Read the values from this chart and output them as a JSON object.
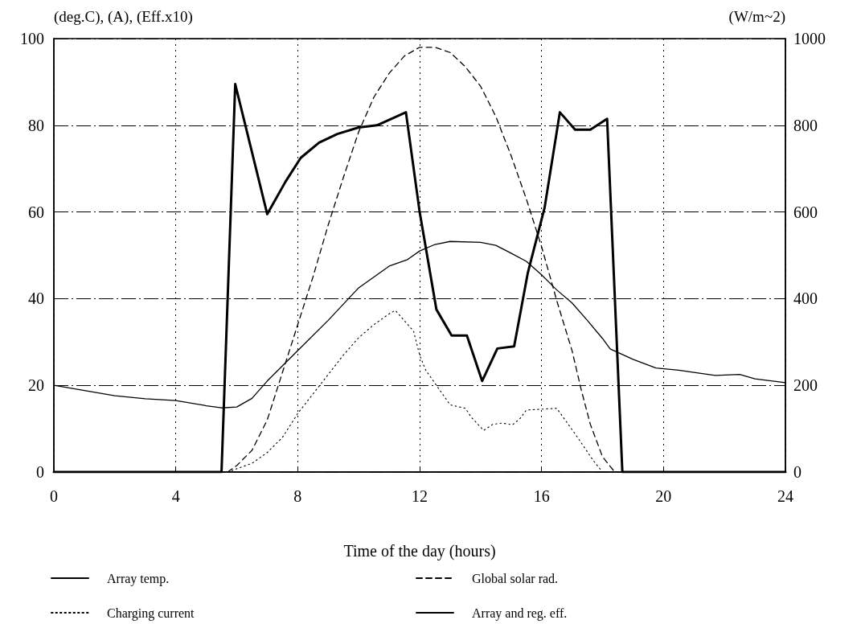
{
  "chart_data": {
    "type": "line",
    "xlabel": "Time of the day (hours)",
    "ylabel": "(deg.C), (A), (Eff.x10)",
    "y2label": "(W/m~2)",
    "xlim": [
      0,
      24
    ],
    "xticks": [
      0,
      4,
      8,
      12,
      16,
      20,
      24
    ],
    "ylim": [
      0,
      100
    ],
    "yticks": [
      0,
      20,
      40,
      60,
      80,
      100
    ],
    "y2lim": [
      0,
      1000
    ],
    "y2ticks": [
      0,
      200,
      400,
      600,
      800,
      1000
    ],
    "grid": true,
    "legend": "bottom",
    "marker": "none",
    "series": [
      {
        "name": "Array temp.",
        "color": "#000000",
        "line_style": "solid",
        "x": [
          0,
          1,
          2,
          3,
          4,
          5,
          5.5,
          6,
          6.5,
          7,
          8,
          9,
          10,
          11,
          11.6,
          12,
          12.5,
          13,
          14,
          14.5,
          15,
          15.5,
          16,
          16.5,
          17,
          17.5,
          18,
          18.25,
          19,
          19.75,
          20.5,
          21,
          21.7,
          22.5,
          23,
          24
        ],
        "values": [
          20,
          18.8,
          17.6,
          16.9,
          16.5,
          15.3,
          14.8,
          15,
          17,
          21,
          28,
          35,
          42.5,
          47.5,
          49,
          51,
          52.5,
          53.2,
          53,
          52.3,
          50.5,
          48.6,
          45.5,
          42,
          39,
          35,
          30.8,
          28.4,
          26,
          24,
          23.5,
          23,
          22.3,
          22.5,
          21.5,
          20.6
        ]
      },
      {
        "name": "Global solar rad.",
        "color": "#000000",
        "line_style": "dashed",
        "axis": "y2",
        "x": [
          5.7,
          6,
          6.5,
          7,
          7.5,
          8,
          8.5,
          9,
          9.5,
          10,
          10.5,
          11,
          11.5,
          12,
          12.5,
          13,
          13.5,
          14,
          14.5,
          15,
          15.5,
          16,
          16.5,
          17,
          17.3,
          17.6,
          18,
          18.4
        ],
        "values": [
          0,
          15,
          50,
          120,
          230,
          340,
          450,
          570,
          680,
          785,
          865,
          920,
          960,
          980,
          980,
          968,
          935,
          890,
          820,
          730,
          630,
          520,
          395,
          280,
          190,
          110,
          35,
          0
        ]
      },
      {
        "name": "Charging current",
        "color": "#000000",
        "line_style": "dotted",
        "x": [
          5.7,
          6.5,
          7,
          7.5,
          8,
          8.5,
          9,
          9.5,
          10,
          10.5,
          11,
          11.2,
          11.8,
          12,
          12.2,
          13,
          13.5,
          13.7,
          14.1,
          14.4,
          14.7,
          15.05,
          15.3,
          15.5,
          16.5,
          17.2,
          17.7,
          18
        ],
        "values": [
          0,
          2,
          4.5,
          8,
          13.5,
          18,
          22.5,
          27,
          31,
          34,
          36.5,
          37.3,
          32.5,
          27,
          23.5,
          15.5,
          14.7,
          12.6,
          9.6,
          11,
          11.3,
          10.9,
          12.4,
          14.3,
          14.7,
          7.8,
          2.6,
          0
        ]
      },
      {
        "name": "Array and reg. eff.",
        "color": "#000000",
        "line_style": "solid",
        "x": [
          0,
          5.5,
          5.95,
          7,
          7.6,
          8.1,
          8.7,
          9.3,
          10,
          10.6,
          11.55,
          12,
          12.55,
          13.05,
          13.55,
          14.05,
          14.55,
          15.1,
          15.55,
          16.1,
          16.6,
          17.1,
          17.6,
          18.15,
          18.65,
          24
        ],
        "values": [
          0,
          0,
          89.5,
          59.5,
          67,
          72.5,
          76,
          78,
          79.5,
          80,
          83,
          60,
          37.5,
          31.5,
          31.5,
          21,
          28.5,
          29,
          46,
          61,
          83,
          79,
          79,
          81.5,
          0,
          0
        ]
      }
    ]
  }
}
